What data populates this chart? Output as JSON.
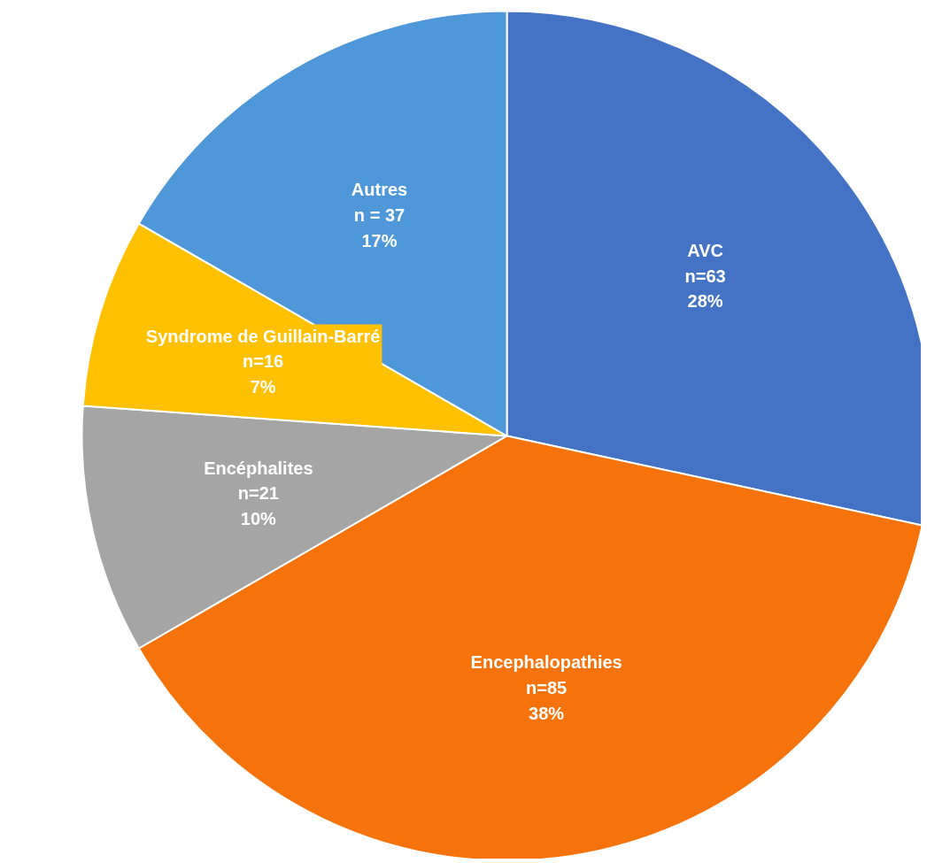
{
  "chart_data": {
    "type": "pie",
    "categories": [
      "AVC",
      "Encephalopathies",
      "Encéphalites",
      "Syndrome de Guillain-Barré",
      "Autres"
    ],
    "values": [
      63,
      85,
      21,
      16,
      37
    ],
    "value_labels": [
      "n=63\n28%",
      "n=85\n38%",
      "n=21\n10%",
      "n=16\n7%",
      "n = 37\n17%"
    ],
    "colors": [
      "#4472c4",
      "#f5730a",
      "#a5a5a5",
      "#ffc000",
      "#4e97d8"
    ],
    "legend": false
  }
}
